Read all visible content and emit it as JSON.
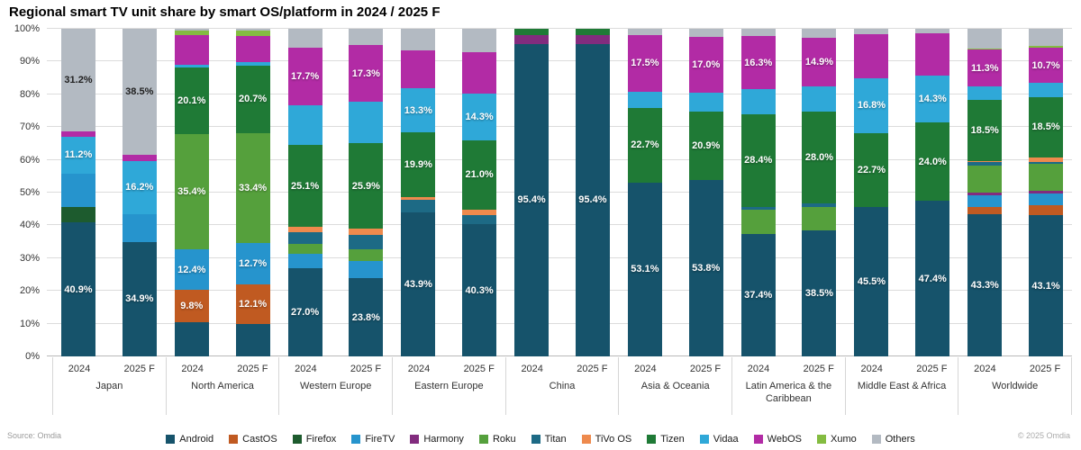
{
  "title": "Regional smart TV unit share by smart OS/platform in 2024 / 2025 F",
  "source": "Source: Omdia",
  "copyright": "© 2025 Omdia",
  "y_axis": {
    "ticks": [
      "0%",
      "10%",
      "20%",
      "30%",
      "40%",
      "50%",
      "60%",
      "70%",
      "80%",
      "90%",
      "100%"
    ]
  },
  "legend": [
    {
      "name": "Android",
      "color": "#16536b"
    },
    {
      "name": "CastOS",
      "color": "#c05a21"
    },
    {
      "name": "Firefox",
      "color": "#1d5b2e"
    },
    {
      "name": "FireTV",
      "color": "#2694cd"
    },
    {
      "name": "Harmony",
      "color": "#822c7e"
    },
    {
      "name": "Roku",
      "color": "#55a03c"
    },
    {
      "name": "Titan",
      "color": "#1d6a85"
    },
    {
      "name": "TiVo OS",
      "color": "#ee8a4d"
    },
    {
      "name": "Tizen",
      "color": "#1f7a36"
    },
    {
      "name": "Vidaa",
      "color": "#2fa8d8"
    },
    {
      "name": "WebOS",
      "color": "#b22ba5"
    },
    {
      "name": "Xumo",
      "color": "#84bc41"
    },
    {
      "name": "Others",
      "color": "#b3bac2"
    }
  ],
  "chart_data": {
    "type": "bar",
    "stacked": true,
    "unit": "percent share",
    "ylim": [
      0,
      100
    ],
    "grid": true,
    "legend_position": "bottom",
    "groups": [
      {
        "region": "Japan",
        "bars": [
          {
            "year": "2024",
            "segments": [
              {
                "p": "Android",
                "v": 40.9,
                "l": "40.9%"
              },
              {
                "p": "Firefox",
                "v": 4.8
              },
              {
                "p": "FireTV",
                "v": 10.2
              },
              {
                "p": "Vidaa",
                "v": 11.2,
                "l": "11.2%"
              },
              {
                "p": "WebOS",
                "v": 1.7
              },
              {
                "p": "Others",
                "v": 31.2,
                "l": "31.2%"
              }
            ]
          },
          {
            "year": "2025 F",
            "segments": [
              {
                "p": "Android",
                "v": 34.9,
                "l": "34.9%"
              },
              {
                "p": "FireTV",
                "v": 8.6
              },
              {
                "p": "Vidaa",
                "v": 16.2,
                "l": "16.2%"
              },
              {
                "p": "WebOS",
                "v": 1.8
              },
              {
                "p": "Others",
                "v": 38.5,
                "l": "38.5%"
              }
            ]
          }
        ]
      },
      {
        "region": "North America",
        "bars": [
          {
            "year": "2024",
            "segments": [
              {
                "p": "Android",
                "v": 10.4
              },
              {
                "p": "CastOS",
                "v": 9.8,
                "l": "9.8%"
              },
              {
                "p": "FireTV",
                "v": 12.4,
                "l": "12.4%"
              },
              {
                "p": "Roku",
                "v": 35.4,
                "l": "35.4%"
              },
              {
                "p": "Tizen",
                "v": 20.1,
                "l": "20.1%"
              },
              {
                "p": "Vidaa",
                "v": 0.8
              },
              {
                "p": "WebOS",
                "v": 9.3
              },
              {
                "p": "Xumo",
                "v": 1.2
              },
              {
                "p": "Others",
                "v": 0.6
              }
            ]
          },
          {
            "year": "2025 F",
            "segments": [
              {
                "p": "Android",
                "v": 9.9
              },
              {
                "p": "CastOS",
                "v": 12.1,
                "l": "12.1%"
              },
              {
                "p": "FireTV",
                "v": 12.7,
                "l": "12.7%"
              },
              {
                "p": "Roku",
                "v": 33.4,
                "l": "33.4%"
              },
              {
                "p": "Tizen",
                "v": 20.7,
                "l": "20.7%"
              },
              {
                "p": "Vidaa",
                "v": 1.0
              },
              {
                "p": "WebOS",
                "v": 8.0
              },
              {
                "p": "Xumo",
                "v": 1.6
              },
              {
                "p": "Others",
                "v": 0.6
              }
            ]
          }
        ]
      },
      {
        "region": "Western Europe",
        "bars": [
          {
            "year": "2024",
            "segments": [
              {
                "p": "Android",
                "v": 27.0,
                "l": "27.0%"
              },
              {
                "p": "FireTV",
                "v": 4.2
              },
              {
                "p": "Roku",
                "v": 3.1
              },
              {
                "p": "Titan",
                "v": 3.6
              },
              {
                "p": "TiVo OS",
                "v": 1.6
              },
              {
                "p": "Tizen",
                "v": 25.1,
                "l": "25.1%"
              },
              {
                "p": "Vidaa",
                "v": 12.0
              },
              {
                "p": "WebOS",
                "v": 17.7,
                "l": "17.7%"
              },
              {
                "p": "Others",
                "v": 5.7
              }
            ]
          },
          {
            "year": "2025 F",
            "segments": [
              {
                "p": "Android",
                "v": 23.8,
                "l": "23.8%"
              },
              {
                "p": "FireTV",
                "v": 5.3
              },
              {
                "p": "Roku",
                "v": 3.7
              },
              {
                "p": "Titan",
                "v": 4.2
              },
              {
                "p": "TiVo OS",
                "v": 2.1
              },
              {
                "p": "Tizen",
                "v": 25.9,
                "l": "25.9%"
              },
              {
                "p": "Vidaa",
                "v": 12.7
              },
              {
                "p": "WebOS",
                "v": 17.3,
                "l": "17.3%"
              },
              {
                "p": "Others",
                "v": 5.0
              }
            ]
          }
        ]
      },
      {
        "region": "Eastern Europe",
        "bars": [
          {
            "year": "2024",
            "segments": [
              {
                "p": "Android",
                "v": 43.9,
                "l": "43.9%"
              },
              {
                "p": "Titan",
                "v": 3.8
              },
              {
                "p": "TiVo OS",
                "v": 0.9
              },
              {
                "p": "Tizen",
                "v": 19.9,
                "l": "19.9%"
              },
              {
                "p": "Vidaa",
                "v": 13.3,
                "l": "13.3%"
              },
              {
                "p": "WebOS",
                "v": 11.5
              },
              {
                "p": "Others",
                "v": 6.7
              }
            ]
          },
          {
            "year": "2025 F",
            "segments": [
              {
                "p": "Android",
                "v": 40.3,
                "l": "40.3%"
              },
              {
                "p": "Titan",
                "v": 2.9
              },
              {
                "p": "TiVo OS",
                "v": 1.7
              },
              {
                "p": "Tizen",
                "v": 21.0,
                "l": "21.0%"
              },
              {
                "p": "Vidaa",
                "v": 14.3,
                "l": "14.3%"
              },
              {
                "p": "WebOS",
                "v": 12.8
              },
              {
                "p": "Others",
                "v": 7.0
              }
            ]
          }
        ]
      },
      {
        "region": "China",
        "bars": [
          {
            "year": "2024",
            "segments": [
              {
                "p": "Android",
                "v": 95.4,
                "l": "95.4%"
              },
              {
                "p": "Harmony",
                "v": 2.6
              },
              {
                "p": "Tizen",
                "v": 2.0
              }
            ]
          },
          {
            "year": "2025 F",
            "segments": [
              {
                "p": "Android",
                "v": 95.4,
                "l": "95.4%"
              },
              {
                "p": "Harmony",
                "v": 2.6
              },
              {
                "p": "Tizen",
                "v": 2.0
              }
            ]
          }
        ]
      },
      {
        "region": "Asia & Oceania",
        "bars": [
          {
            "year": "2024",
            "segments": [
              {
                "p": "Android",
                "v": 53.1,
                "l": "53.1%"
              },
              {
                "p": "Tizen",
                "v": 22.7,
                "l": "22.7%"
              },
              {
                "p": "Vidaa",
                "v": 4.9
              },
              {
                "p": "WebOS",
                "v": 17.5,
                "l": "17.5%"
              },
              {
                "p": "Others",
                "v": 1.8
              }
            ]
          },
          {
            "year": "2025 F",
            "segments": [
              {
                "p": "Android",
                "v": 53.8,
                "l": "53.8%"
              },
              {
                "p": "Tizen",
                "v": 20.9,
                "l": "20.9%"
              },
              {
                "p": "Vidaa",
                "v": 5.8
              },
              {
                "p": "WebOS",
                "v": 17.0,
                "l": "17.0%"
              },
              {
                "p": "Others",
                "v": 2.5
              }
            ]
          }
        ]
      },
      {
        "region": "Latin America & the Caribbean",
        "bars": [
          {
            "year": "2024",
            "segments": [
              {
                "p": "Android",
                "v": 37.4,
                "l": "37.4%"
              },
              {
                "p": "Roku",
                "v": 7.3
              },
              {
                "p": "Titan",
                "v": 0.9
              },
              {
                "p": "Tizen",
                "v": 28.4,
                "l": "28.4%"
              },
              {
                "p": "Vidaa",
                "v": 7.5
              },
              {
                "p": "WebOS",
                "v": 16.3,
                "l": "16.3%"
              },
              {
                "p": "Others",
                "v": 2.2
              }
            ]
          },
          {
            "year": "2025 F",
            "segments": [
              {
                "p": "Android",
                "v": 38.5,
                "l": "38.5%"
              },
              {
                "p": "Roku",
                "v": 7.2
              },
              {
                "p": "Titan",
                "v": 1.1
              },
              {
                "p": "Tizen",
                "v": 28.0,
                "l": "28.0%"
              },
              {
                "p": "Vidaa",
                "v": 7.5
              },
              {
                "p": "WebOS",
                "v": 14.9,
                "l": "14.9%"
              },
              {
                "p": "Others",
                "v": 2.8
              }
            ]
          }
        ]
      },
      {
        "region": "Middle East & Africa",
        "bars": [
          {
            "year": "2024",
            "segments": [
              {
                "p": "Android",
                "v": 45.5,
                "l": "45.5%"
              },
              {
                "p": "Tizen",
                "v": 22.7,
                "l": "22.7%"
              },
              {
                "p": "Vidaa",
                "v": 16.8,
                "l": "16.8%"
              },
              {
                "p": "WebOS",
                "v": 13.5
              },
              {
                "p": "Others",
                "v": 1.5
              }
            ]
          },
          {
            "year": "2025 F",
            "segments": [
              {
                "p": "Android",
                "v": 47.4,
                "l": "47.4%"
              },
              {
                "p": "Tizen",
                "v": 24.0,
                "l": "24.0%"
              },
              {
                "p": "Vidaa",
                "v": 14.3,
                "l": "14.3%"
              },
              {
                "p": "WebOS",
                "v": 13.0
              },
              {
                "p": "Others",
                "v": 1.3
              }
            ]
          }
        ]
      },
      {
        "region": "Worldwide",
        "bars": [
          {
            "year": "2024",
            "segments": [
              {
                "p": "Android",
                "v": 43.3,
                "l": "43.3%"
              },
              {
                "p": "CastOS",
                "v": 2.4
              },
              {
                "p": "FireTV",
                "v": 3.4
              },
              {
                "p": "Harmony",
                "v": 1.0
              },
              {
                "p": "Roku",
                "v": 8.1
              },
              {
                "p": "Titan",
                "v": 1.1
              },
              {
                "p": "TiVo OS",
                "v": 0.4
              },
              {
                "p": "Tizen",
                "v": 18.5,
                "l": "18.5%"
              },
              {
                "p": "Vidaa",
                "v": 4.1
              },
              {
                "p": "WebOS",
                "v": 11.3,
                "l": "11.3%"
              },
              {
                "p": "Xumo",
                "v": 0.4
              },
              {
                "p": "Others",
                "v": 6.0
              }
            ]
          },
          {
            "year": "2025 F",
            "segments": [
              {
                "p": "Android",
                "v": 43.1,
                "l": "43.1%"
              },
              {
                "p": "CastOS",
                "v": 3.0
              },
              {
                "p": "FireTV",
                "v": 3.6
              },
              {
                "p": "Harmony",
                "v": 1.0
              },
              {
                "p": "Roku",
                "v": 8.2
              },
              {
                "p": "Titan",
                "v": 0.4
              },
              {
                "p": "TiVo OS",
                "v": 1.4
              },
              {
                "p": "Tizen",
                "v": 18.5,
                "l": "18.5%"
              },
              {
                "p": "Vidaa",
                "v": 4.3
              },
              {
                "p": "WebOS",
                "v": 10.7,
                "l": "10.7%"
              },
              {
                "p": "Xumo",
                "v": 0.6
              },
              {
                "p": "Others",
                "v": 5.2
              }
            ]
          }
        ]
      }
    ]
  }
}
